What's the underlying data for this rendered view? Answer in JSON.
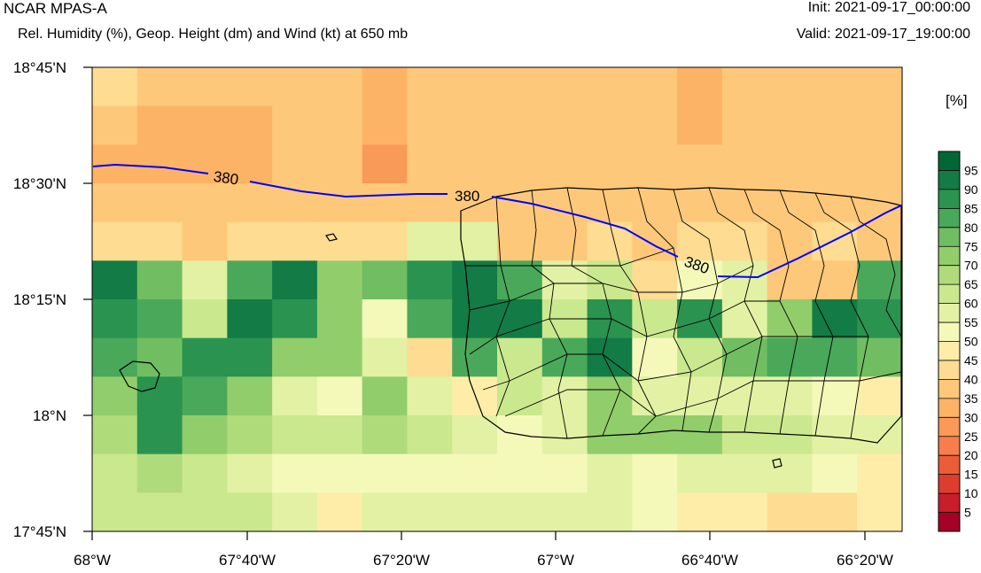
{
  "header": {
    "title": "NCAR MPAS-A",
    "subtitle": "Rel. Humidity (%), Geop. Height (dm) and Wind (kt) at 650 mb",
    "init": "Init: 2021-09-17_00:00:00",
    "valid": "Valid: 2021-09-17_19:00:00"
  },
  "colorbar": {
    "unit": "[%]",
    "labels": [
      "5",
      "10",
      "15",
      "20",
      "25",
      "30",
      "35",
      "40",
      "45",
      "50",
      "55",
      "60",
      "65",
      "70",
      "75",
      "80",
      "85",
      "90",
      "95"
    ],
    "colors": [
      "#a50026",
      "#c81e2c",
      "#dd3d2d",
      "#ea5d37",
      "#f67e4b",
      "#f99a59",
      "#fdb366",
      "#fec87a",
      "#fedc91",
      "#feeda8",
      "#f4f9ba",
      "#e2f1a4",
      "#cae88e",
      "#afdb7b",
      "#92cd6c",
      "#71bd62",
      "#4aa85a",
      "#2a9350",
      "#137b45",
      "#006837"
    ]
  },
  "chart_data": {
    "type": "heatmap",
    "variable": "Rel. Humidity (%)",
    "contour_label": "380",
    "contour_labels": [
      "380",
      "380",
      "380"
    ],
    "xticks": [
      "68°W",
      "67°40'W",
      "67°20'W",
      "67°W",
      "66°40'W",
      "66°20'W"
    ],
    "yticks": [
      "18°45'N",
      "18°30'N",
      "18°15'N",
      "18°N",
      "17°45'N"
    ],
    "lon_range": [
      -68.0,
      -66.2
    ],
    "lat_range": [
      17.75,
      18.75
    ],
    "values": [
      [
        42,
        38,
        38,
        38,
        38,
        38,
        32,
        38,
        38,
        38,
        38,
        38,
        38,
        32,
        38,
        38,
        38,
        38
      ],
      [
        38,
        32,
        32,
        32,
        38,
        38,
        32,
        38,
        38,
        38,
        38,
        38,
        38,
        32,
        38,
        38,
        38,
        38
      ],
      [
        32,
        32,
        32,
        32,
        38,
        38,
        28,
        38,
        38,
        38,
        38,
        38,
        38,
        38,
        38,
        38,
        38,
        38
      ],
      [
        38,
        38,
        38,
        38,
        38,
        38,
        38,
        38,
        38,
        38,
        38,
        38,
        38,
        38,
        38,
        38,
        38,
        38
      ],
      [
        42,
        42,
        38,
        42,
        42,
        42,
        42,
        55,
        55,
        38,
        38,
        42,
        38,
        42,
        42,
        38,
        42,
        38
      ],
      [
        92,
        75,
        55,
        80,
        90,
        72,
        75,
        88,
        92,
        80,
        55,
        60,
        40,
        52,
        55,
        38,
        38,
        82
      ],
      [
        85,
        80,
        60,
        92,
        88,
        72,
        50,
        80,
        92,
        90,
        60,
        85,
        62,
        88,
        55,
        72,
        92,
        88
      ],
      [
        82,
        75,
        86,
        86,
        72,
        70,
        58,
        40,
        80,
        62,
        80,
        92,
        52,
        60,
        75,
        80,
        80,
        75
      ],
      [
        72,
        86,
        80,
        72,
        55,
        50,
        72,
        55,
        48,
        60,
        55,
        70,
        55,
        55,
        55,
        58,
        52,
        48
      ],
      [
        68,
        86,
        72,
        68,
        62,
        62,
        68,
        62,
        58,
        52,
        55,
        72,
        72,
        72,
        62,
        62,
        58,
        55
      ],
      [
        62,
        68,
        62,
        55,
        50,
        50,
        52,
        52,
        52,
        52,
        52,
        55,
        52,
        55,
        55,
        55,
        52,
        45
      ],
      [
        62,
        62,
        62,
        62,
        58,
        48,
        55,
        55,
        58,
        55,
        55,
        55,
        52,
        45,
        45,
        40,
        40,
        45
      ]
    ]
  }
}
